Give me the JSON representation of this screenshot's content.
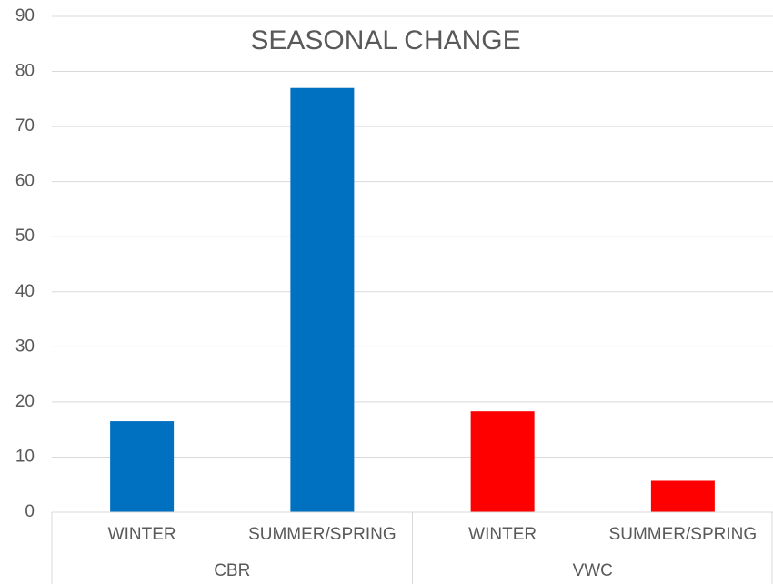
{
  "chart_data": {
    "type": "bar",
    "title": "SEASONAL CHANGE",
    "series": [
      {
        "name": "CBR",
        "color": "#0070c0",
        "categories": [
          "WINTER",
          "SUMMER/SPRING"
        ],
        "values": [
          16.5,
          77
        ]
      },
      {
        "name": "VWC",
        "color": "#ff0000",
        "categories": [
          "WINTER",
          "SUMMER/SPRING"
        ],
        "values": [
          18.3,
          5.7
        ]
      }
    ],
    "ylim": [
      0,
      90
    ],
    "yticks": [
      0,
      10,
      20,
      30,
      40,
      50,
      60,
      70,
      80,
      90
    ],
    "grid": true
  }
}
